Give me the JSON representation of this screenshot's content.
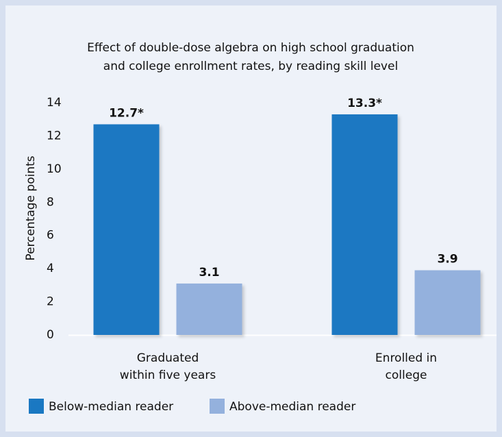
{
  "chart_data": {
    "type": "bar",
    "title": [
      "Effect of double-dose algebra on high school graduation",
      "and college enrollment rates, by reading skill level"
    ],
    "y_label": "Percentage points",
    "categories": [
      [
        "Graduated",
        "within five years"
      ],
      [
        "Enrolled in",
        "college"
      ]
    ],
    "series": [
      {
        "name": "Below-median reader",
        "color": "#1a78c2",
        "values": [
          12.7,
          13.3
        ],
        "value_labels": [
          "12.7*",
          "13.3*"
        ]
      },
      {
        "name": "Above-median reader",
        "color": "#94b1dd",
        "values": [
          3.1,
          3.9
        ],
        "value_labels": [
          "3.1",
          "3.9"
        ]
      }
    ],
    "ylim": [
      0,
      14
    ],
    "yticks": [
      0,
      2,
      4,
      6,
      8,
      10,
      12,
      14
    ],
    "grid": false
  }
}
